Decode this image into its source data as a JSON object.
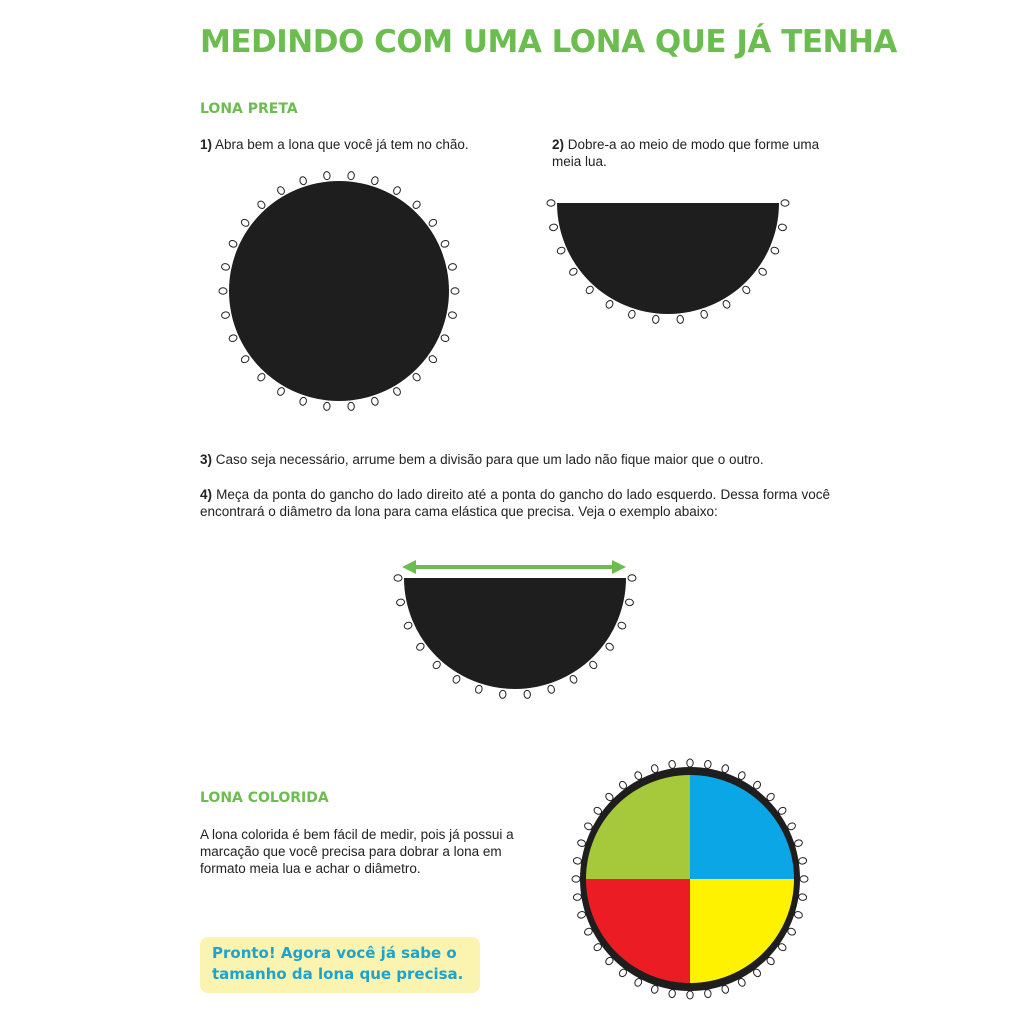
{
  "title": "MEDINDO COM UMA LONA QUE JÁ TENHA",
  "lona_preta": {
    "heading": "LONA PRETA",
    "steps": [
      {
        "num": "1)",
        "text": " Abra bem a lona que você já tem no chão."
      },
      {
        "num": "2)",
        "text": " Dobre-a ao meio de modo que forme uma meia lua."
      },
      {
        "num": "3)",
        "text": " Caso seja necessário, arrume bem a divisão para que um lado não fique maior que o outro."
      },
      {
        "num": "4)",
        "text": " Meça da ponta do gancho do lado direito até a ponta do gancho do lado esquerdo. Dessa forma você encontrará o diâmetro da lona para cama elástica que precisa. Veja o exemplo abaixo:"
      }
    ]
  },
  "lona_colorida": {
    "heading": "LONA COLORIDA",
    "text": "A lona colorida é bem fácil de medir, pois já possui a marcação que você precisa para dobrar a lona em formato meia lua e achar o diâmetro.",
    "quadrant_colors": [
      "#a5c93a",
      "#0aa6e6",
      "#ec1c24",
      "#fff200"
    ]
  },
  "note": "Pronto! Agora você já sabe o tamanho da lona que precisa.",
  "colors": {
    "accent": "#6cbd4f",
    "tarp": "#1e1e1e",
    "note_bg": "#fbf3b0",
    "note_text": "#1ea3cc"
  }
}
